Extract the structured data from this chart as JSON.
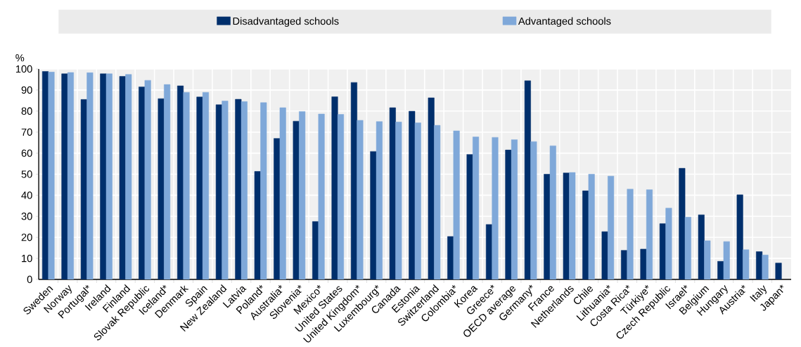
{
  "chart_data": {
    "type": "bar",
    "ylabel": "%",
    "categories": [
      "Sweden",
      "Norway",
      "Portugal*",
      "Ireland",
      "Finland",
      "Slovak Republic",
      "Iceland*",
      "Denmark",
      "Spain",
      "New Zealand",
      "Latvia",
      "Poland*",
      "Australia*",
      "Slovenia*",
      "Mexico*",
      "United States",
      "United Kingdom*",
      "Luxembourg*",
      "Canada",
      "Estonia",
      "Switzerland",
      "Colombia*",
      "Korea",
      "Greece*",
      "OECD average",
      "Germany*",
      "France",
      "Netherlands",
      "Chile",
      "Lithuania*",
      "Costa Rica*",
      "Türkiye*",
      "Czech Republic",
      "Israel*",
      "Belgium",
      "Hungary",
      "Austria*",
      "Italy",
      "Japan*"
    ],
    "series": [
      {
        "name": "Disadvantaged schools",
        "color": "#002f6c",
        "values": [
          98.8,
          97.7,
          85.5,
          97.7,
          96.5,
          91.5,
          85.9,
          92.0,
          86.7,
          83.0,
          85.6,
          51.3,
          67.0,
          75.2,
          27.5,
          86.8,
          93.6,
          60.8,
          81.6,
          79.9,
          86.3,
          20.4,
          59.4,
          26.1,
          61.5,
          94.4,
          50.0,
          50.6,
          42.1,
          22.7,
          13.8,
          14.4,
          26.5,
          52.8,
          30.7,
          8.6,
          40.2,
          13.2,
          7.8
        ]
      },
      {
        "name": "Advantaged schools",
        "color": "#7fa8d9",
        "values": [
          98.6,
          98.3,
          98.2,
          97.7,
          97.4,
          94.6,
          92.6,
          88.9,
          88.9,
          84.8,
          84.5,
          84.0,
          81.6,
          79.8,
          78.6,
          78.4,
          75.6,
          75.0,
          74.8,
          74.4,
          73.2,
          70.6,
          67.7,
          67.5,
          66.4,
          65.5,
          63.5,
          50.8,
          50.0,
          49.1,
          42.9,
          42.6,
          33.9,
          29.6,
          18.4,
          18.0,
          14.1,
          11.6,
          null
        ]
      }
    ],
    "ylim": [
      0,
      100
    ],
    "yticks": [
      0,
      10,
      20,
      30,
      40,
      50,
      60,
      70,
      80,
      90,
      100
    ],
    "grid": true,
    "legend": "top"
  }
}
